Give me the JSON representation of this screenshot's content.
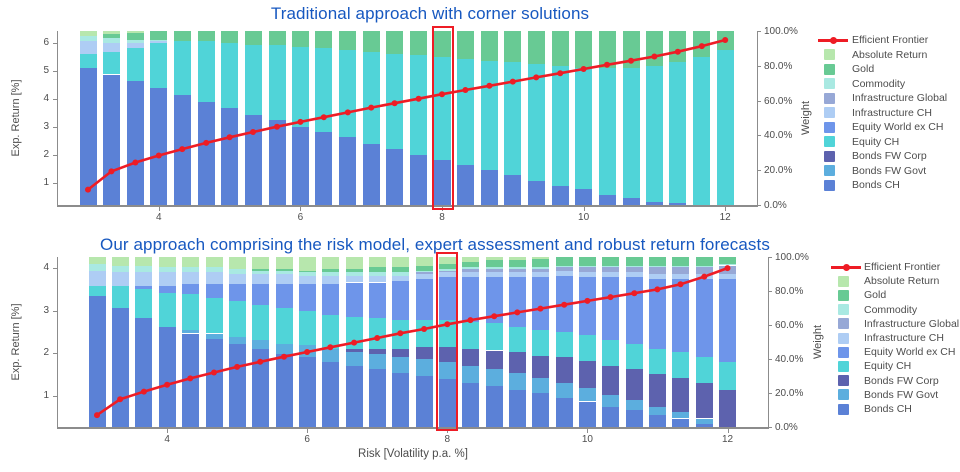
{
  "title_color": "#1758c0",
  "frontier_color": "#ee1c25",
  "axis_text_color": "#4d4d4d",
  "legend": {
    "frontier_label": "Efficient Frontier",
    "items": [
      {
        "key": "absolute_return",
        "label": "Absolute Return",
        "color": "#b7e7ad"
      },
      {
        "key": "gold",
        "label": "Gold",
        "color": "#68ca94"
      },
      {
        "key": "commodity",
        "label": "Commodity",
        "color": "#a9e9e2"
      },
      {
        "key": "infrastructure_global",
        "label": "Infrastructure Global",
        "color": "#97a8d6"
      },
      {
        "key": "infrastructure_ch",
        "label": "Infrastructure CH",
        "color": "#aecdf4"
      },
      {
        "key": "equity_world_ex_ch",
        "label": "Equity World ex CH",
        "color": "#6e95ea"
      },
      {
        "key": "equity_ch",
        "label": "Equity CH",
        "color": "#50d4d8"
      },
      {
        "key": "bonds_fw_corp",
        "label": "Bonds FW Corp",
        "color": "#5d62ae"
      },
      {
        "key": "bonds_fw_govt",
        "label": "Bonds FW Govt",
        "color": "#5caede"
      },
      {
        "key": "bonds_ch",
        "label": "Bonds CH",
        "color": "#5b81d6"
      }
    ]
  },
  "chart_data": [
    {
      "type": "stacked-bar+line",
      "title": "Traditional approach with corner solutions",
      "ylabel": "Exp. Return [%]",
      "y2label": "Weight",
      "line_name": "Efficient Frontier",
      "x": [
        3.0,
        3.33,
        3.67,
        4.0,
        4.33,
        4.67,
        5.0,
        5.33,
        5.67,
        6.0,
        6.33,
        6.67,
        7.0,
        7.33,
        7.67,
        8.0,
        8.33,
        8.67,
        9.0,
        9.33,
        9.67,
        10.0,
        10.33,
        10.67,
        11.0,
        11.33,
        11.67,
        12.0
      ],
      "x_ticks": [
        4,
        6,
        8,
        10,
        12
      ],
      "y_ticks": [
        1,
        2,
        3,
        4,
        5,
        6
      ],
      "y2_ticks": [
        "0.0%",
        "20.0%",
        "40.0%",
        "60.0%",
        "80.0%",
        "100.0%"
      ],
      "highlight_x": 8,
      "frontier": [
        0.75,
        1.4,
        1.72,
        1.97,
        2.2,
        2.42,
        2.62,
        2.81,
        3.0,
        3.17,
        3.34,
        3.51,
        3.68,
        3.84,
        4.0,
        4.16,
        4.31,
        4.46,
        4.61,
        4.76,
        4.91,
        5.06,
        5.21,
        5.36,
        5.51,
        5.68,
        5.88,
        6.1
      ],
      "series": [
        {
          "key": "bonds_ch",
          "name": "Bonds CH",
          "values": [
            79,
            75,
            71,
            67,
            63,
            59,
            56,
            52,
            49,
            45,
            42,
            39,
            35,
            32,
            29,
            26,
            23,
            20,
            17,
            14,
            11,
            9,
            6,
            4,
            2,
            1,
            0,
            0
          ]
        },
        {
          "key": "equity_ch",
          "name": "Equity CH",
          "values": [
            8,
            13,
            19,
            26,
            31,
            35,
            37,
            40,
            43,
            46,
            48,
            50,
            53,
            55,
            57,
            59,
            61,
            63,
            65,
            67,
            69,
            70,
            73,
            75,
            78,
            81,
            85,
            89
          ]
        },
        {
          "key": "infrastructure_ch",
          "name": "Infrastructure CH",
          "values": [
            7,
            5,
            3,
            1,
            0,
            0,
            0,
            0,
            0,
            0,
            0,
            0,
            0,
            0,
            0,
            0,
            0,
            0,
            0,
            0,
            0,
            0,
            0,
            0,
            0,
            0,
            0,
            0
          ]
        },
        {
          "key": "commodity",
          "name": "Commodity",
          "values": [
            3,
            3,
            2,
            1,
            0,
            0,
            0,
            0,
            0,
            0,
            0,
            0,
            0,
            0,
            0,
            0,
            0,
            0,
            0,
            0,
            0,
            0,
            0,
            0,
            0,
            0,
            0,
            0
          ]
        },
        {
          "key": "gold",
          "name": "Gold",
          "values": [
            0,
            2,
            4,
            5,
            6,
            6,
            7,
            8,
            8,
            9,
            10,
            11,
            12,
            13,
            14,
            15,
            16,
            17,
            18,
            19,
            20,
            21,
            21,
            21,
            20,
            18,
            15,
            11
          ]
        },
        {
          "key": "absolute_return",
          "name": "Absolute Return",
          "values": [
            3,
            2,
            1,
            0,
            0,
            0,
            0,
            0,
            0,
            0,
            0,
            0,
            0,
            0,
            0,
            0,
            0,
            0,
            0,
            0,
            0,
            0,
            0,
            0,
            0,
            0,
            0,
            0
          ]
        }
      ]
    },
    {
      "type": "stacked-bar+line",
      "title": "Our approach comprising the risk model, expert assessment and robust return forecasts",
      "xlabel": "Risk [Volatility p.a. %]",
      "ylabel": "Exp. Return [%]",
      "y2label": "Weight",
      "line_name": "Efficient Frontier",
      "x": [
        3.0,
        3.33,
        3.67,
        4.0,
        4.33,
        4.67,
        5.0,
        5.33,
        5.67,
        6.0,
        6.33,
        6.67,
        7.0,
        7.33,
        7.67,
        8.0,
        8.33,
        8.67,
        9.0,
        9.33,
        9.67,
        10.0,
        10.33,
        10.67,
        11.0,
        11.33,
        11.67,
        12.0
      ],
      "x_ticks": [
        4,
        6,
        8,
        10,
        12
      ],
      "y_ticks": [
        1,
        2,
        3,
        4
      ],
      "y2_ticks": [
        "0.0%",
        "20.0%",
        "40.0%",
        "60.0%",
        "80.0%",
        "100.0%"
      ],
      "highlight_x": 8,
      "frontier": [
        0.55,
        0.92,
        1.1,
        1.26,
        1.41,
        1.55,
        1.68,
        1.8,
        1.92,
        2.03,
        2.14,
        2.25,
        2.36,
        2.47,
        2.57,
        2.68,
        2.78,
        2.87,
        2.96,
        3.05,
        3.14,
        3.23,
        3.32,
        3.41,
        3.5,
        3.62,
        3.8,
        4.0
      ],
      "series": [
        {
          "key": "bonds_ch",
          "name": "Bonds CH",
          "values": [
            77,
            70,
            64,
            59,
            55,
            52,
            49,
            46,
            43,
            41,
            38,
            36,
            34,
            32,
            30,
            28,
            26,
            24,
            22,
            20,
            17,
            15,
            12,
            10,
            7,
            5,
            2,
            0
          ]
        },
        {
          "key": "bonds_fw_govt",
          "name": "Bonds FW Govt",
          "values": [
            0,
            0,
            0,
            0,
            2,
            3,
            4,
            5,
            6,
            7,
            8,
            8,
            9,
            9,
            10,
            10,
            10,
            10,
            10,
            9,
            9,
            8,
            7,
            6,
            5,
            4,
            3,
            0
          ]
        },
        {
          "key": "bonds_fw_corp",
          "name": "Bonds FW Corp",
          "values": [
            0,
            0,
            0,
            0,
            0,
            0,
            0,
            0,
            0,
            0,
            0,
            2,
            3,
            5,
            7,
            9,
            10,
            11,
            12,
            13,
            15,
            16,
            17,
            18,
            19,
            20,
            21,
            22
          ]
        },
        {
          "key": "equity_ch",
          "name": "Equity CH",
          "values": [
            6,
            13,
            17,
            20,
            21,
            21,
            21,
            21,
            21,
            20,
            20,
            19,
            18,
            17,
            16,
            16,
            16,
            16,
            15,
            15,
            15,
            15,
            15,
            15,
            15,
            15,
            15,
            16
          ]
        },
        {
          "key": "equity_world_ex_ch",
          "name": "Equity World ex CH",
          "values": [
            0,
            0,
            2,
            4,
            6,
            8,
            10,
            12,
            14,
            16,
            18,
            20,
            21,
            23,
            24,
            25,
            26,
            27,
            29,
            31,
            33,
            34,
            37,
            39,
            41,
            43,
            46,
            49
          ]
        },
        {
          "key": "infrastructure_ch",
          "name": "Infrastructure CH",
          "values": [
            9,
            8,
            8,
            8,
            7,
            7,
            6,
            6,
            6,
            5,
            5,
            4,
            4,
            3,
            3,
            3,
            3,
            3,
            3,
            3,
            3,
            3,
            3,
            3,
            3,
            3,
            3,
            3
          ]
        },
        {
          "key": "infrastructure_global",
          "name": "Infrastructure Global",
          "values": [
            0,
            0,
            0,
            0,
            0,
            0,
            0,
            0,
            0,
            0,
            0,
            0,
            0,
            0,
            1,
            1,
            2,
            2,
            2,
            2,
            2,
            3,
            3,
            3,
            4,
            4,
            4,
            5
          ]
        },
        {
          "key": "commodity",
          "name": "Commodity",
          "values": [
            4,
            4,
            4,
            3,
            3,
            3,
            3,
            2,
            2,
            2,
            2,
            2,
            2,
            2,
            1,
            1,
            1,
            1,
            1,
            1,
            1,
            1,
            1,
            1,
            1,
            1,
            1,
            1
          ]
        },
        {
          "key": "gold",
          "name": "Gold",
          "values": [
            0,
            0,
            0,
            0,
            0,
            0,
            0,
            1,
            1,
            1,
            2,
            2,
            3,
            3,
            3,
            3,
            3,
            4,
            4,
            5,
            5,
            5,
            5,
            5,
            5,
            5,
            5,
            4
          ]
        },
        {
          "key": "absolute_return",
          "name": "Absolute Return",
          "values": [
            4,
            5,
            5,
            6,
            6,
            6,
            7,
            7,
            7,
            8,
            7,
            7,
            6,
            6,
            5,
            4,
            3,
            2,
            2,
            1,
            0,
            0,
            0,
            0,
            0,
            0,
            0,
            0
          ]
        }
      ]
    }
  ]
}
